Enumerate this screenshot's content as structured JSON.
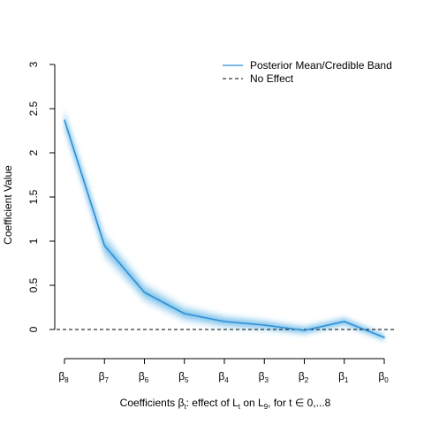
{
  "chart_data": {
    "type": "line",
    "title": "",
    "xlabel": {
      "prefix": "Coefficients β",
      "sub1": "t",
      "mid1": ": effect of L",
      "sub2": "t",
      "mid2": " on L",
      "sub3": "9",
      "suffix": ", for t ∈ 0,...8"
    },
    "ylabel": "Coefficient Value",
    "ylim": [
      -0.3,
      3.0
    ],
    "yticks": [
      0,
      0.5,
      1,
      1.5,
      2,
      2.5,
      3
    ],
    "ytick_labels": [
      "0",
      "0.5",
      "1",
      "1.5",
      "2",
      "2.5",
      "3"
    ],
    "categories": [
      {
        "base": "β",
        "sub": "8"
      },
      {
        "base": "β",
        "sub": "7"
      },
      {
        "base": "β",
        "sub": "6"
      },
      {
        "base": "β",
        "sub": "5"
      },
      {
        "base": "β",
        "sub": "4"
      },
      {
        "base": "β",
        "sub": "3"
      },
      {
        "base": "β",
        "sub": "2"
      },
      {
        "base": "β",
        "sub": "1"
      },
      {
        "base": "β",
        "sub": "0"
      }
    ],
    "series": [
      {
        "name": "Posterior Mean/Credible Band",
        "color": "#2d8fd5",
        "band_color": "#3aa6e0",
        "values": [
          2.37,
          0.95,
          0.42,
          0.18,
          0.09,
          0.05,
          -0.01,
          0.09,
          -0.09
        ],
        "band_halfwidth": [
          0.15,
          0.17,
          0.13,
          0.11,
          0.09,
          0.08,
          0.07,
          0.07,
          0.06
        ]
      },
      {
        "name": "No Effect",
        "color": "#000000",
        "dashed": true,
        "value": 0
      }
    ],
    "legend": {
      "placement": "top-right",
      "entries": [
        "Posterior Mean/Credible Band",
        "No Effect"
      ]
    },
    "grid": false
  }
}
